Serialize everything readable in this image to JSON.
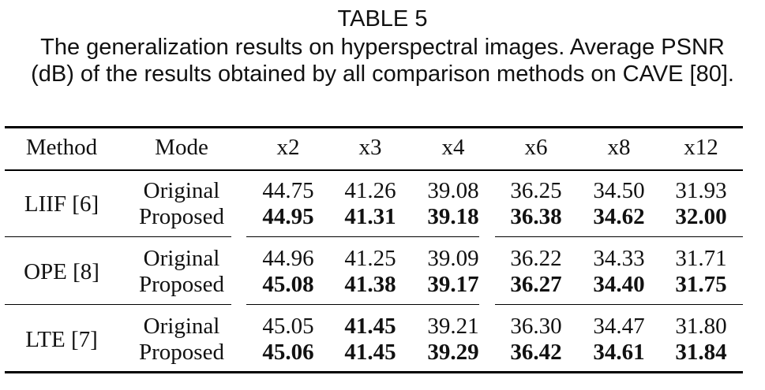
{
  "caption": {
    "label": "TABLE 5",
    "line1": "The generalization results on hyperspectral images. Average PSNR",
    "line2": "(dB) of the results obtained by all comparison methods on CAVE [80]."
  },
  "table": {
    "headers": [
      "Method",
      "Mode",
      "x2",
      "x3",
      "x4",
      "x6",
      "x8",
      "x12"
    ],
    "groups": [
      {
        "method": "LIIF [6]",
        "rows": [
          {
            "mode": "Original",
            "values": [
              "44.75",
              "41.26",
              "39.08",
              "36.25",
              "34.50",
              "31.93"
            ],
            "bold": [
              false,
              false,
              false,
              false,
              false,
              false
            ]
          },
          {
            "mode": "Proposed",
            "values": [
              "44.95",
              "41.31",
              "39.18",
              "36.38",
              "34.62",
              "32.00"
            ],
            "bold": [
              true,
              true,
              true,
              true,
              true,
              true
            ]
          }
        ]
      },
      {
        "method": "OPE [8]",
        "rows": [
          {
            "mode": "Original",
            "values": [
              "44.96",
              "41.25",
              "39.09",
              "36.22",
              "34.33",
              "31.71"
            ],
            "bold": [
              false,
              false,
              false,
              false,
              false,
              false
            ]
          },
          {
            "mode": "Proposed",
            "values": [
              "45.08",
              "41.38",
              "39.17",
              "36.27",
              "34.40",
              "31.75"
            ],
            "bold": [
              true,
              true,
              true,
              true,
              true,
              true
            ]
          }
        ]
      },
      {
        "method": "LTE [7]",
        "rows": [
          {
            "mode": "Original",
            "values": [
              "45.05",
              "41.45",
              "39.21",
              "36.30",
              "34.47",
              "31.80"
            ],
            "bold": [
              false,
              true,
              false,
              false,
              false,
              false
            ]
          },
          {
            "mode": "Proposed",
            "values": [
              "45.06",
              "41.45",
              "39.29",
              "36.42",
              "34.61",
              "31.84"
            ],
            "bold": [
              true,
              true,
              true,
              true,
              true,
              true
            ]
          }
        ]
      }
    ]
  }
}
